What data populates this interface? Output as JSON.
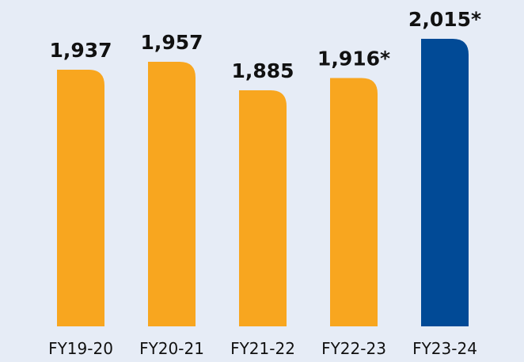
{
  "chart_data": {
    "type": "bar",
    "categories": [
      "FY19-20",
      "FY20-21",
      "FY21-22",
      "FY22-23",
      "FY23-24"
    ],
    "values": [
      1937,
      1957,
      1885,
      1916,
      2015
    ],
    "data_labels": [
      "1,937",
      "1,957",
      "1,885",
      "1,916*",
      "2,015*"
    ],
    "highlight_index": 4,
    "colors": {
      "default_bar": "#f8a61f",
      "highlight_bar": "#014a96",
      "background": "#e6ecf6",
      "text": "#111111"
    },
    "title": "",
    "xlabel": "",
    "ylabel": "",
    "grid": false,
    "legend": "none"
  }
}
